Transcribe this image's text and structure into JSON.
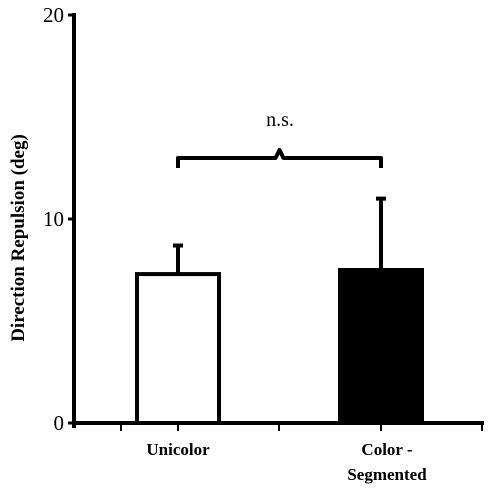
{
  "chart_data": {
    "type": "bar",
    "ylabel": "Direction Repulsion (deg)",
    "xlabel": "",
    "ylim": [
      0,
      20
    ],
    "yticks": [
      "0",
      "10",
      "20"
    ],
    "categories": [
      {
        "lines": [
          "Unicolor"
        ]
      },
      {
        "lines": [
          "Color -",
          "Segmented"
        ]
      }
    ],
    "values": [
      7.3,
      7.5
    ],
    "errors": [
      1.4,
      3.5
    ],
    "bar_fills": [
      "#ffffff",
      "#000000"
    ],
    "annotation": "n.s.",
    "grid": false
  }
}
